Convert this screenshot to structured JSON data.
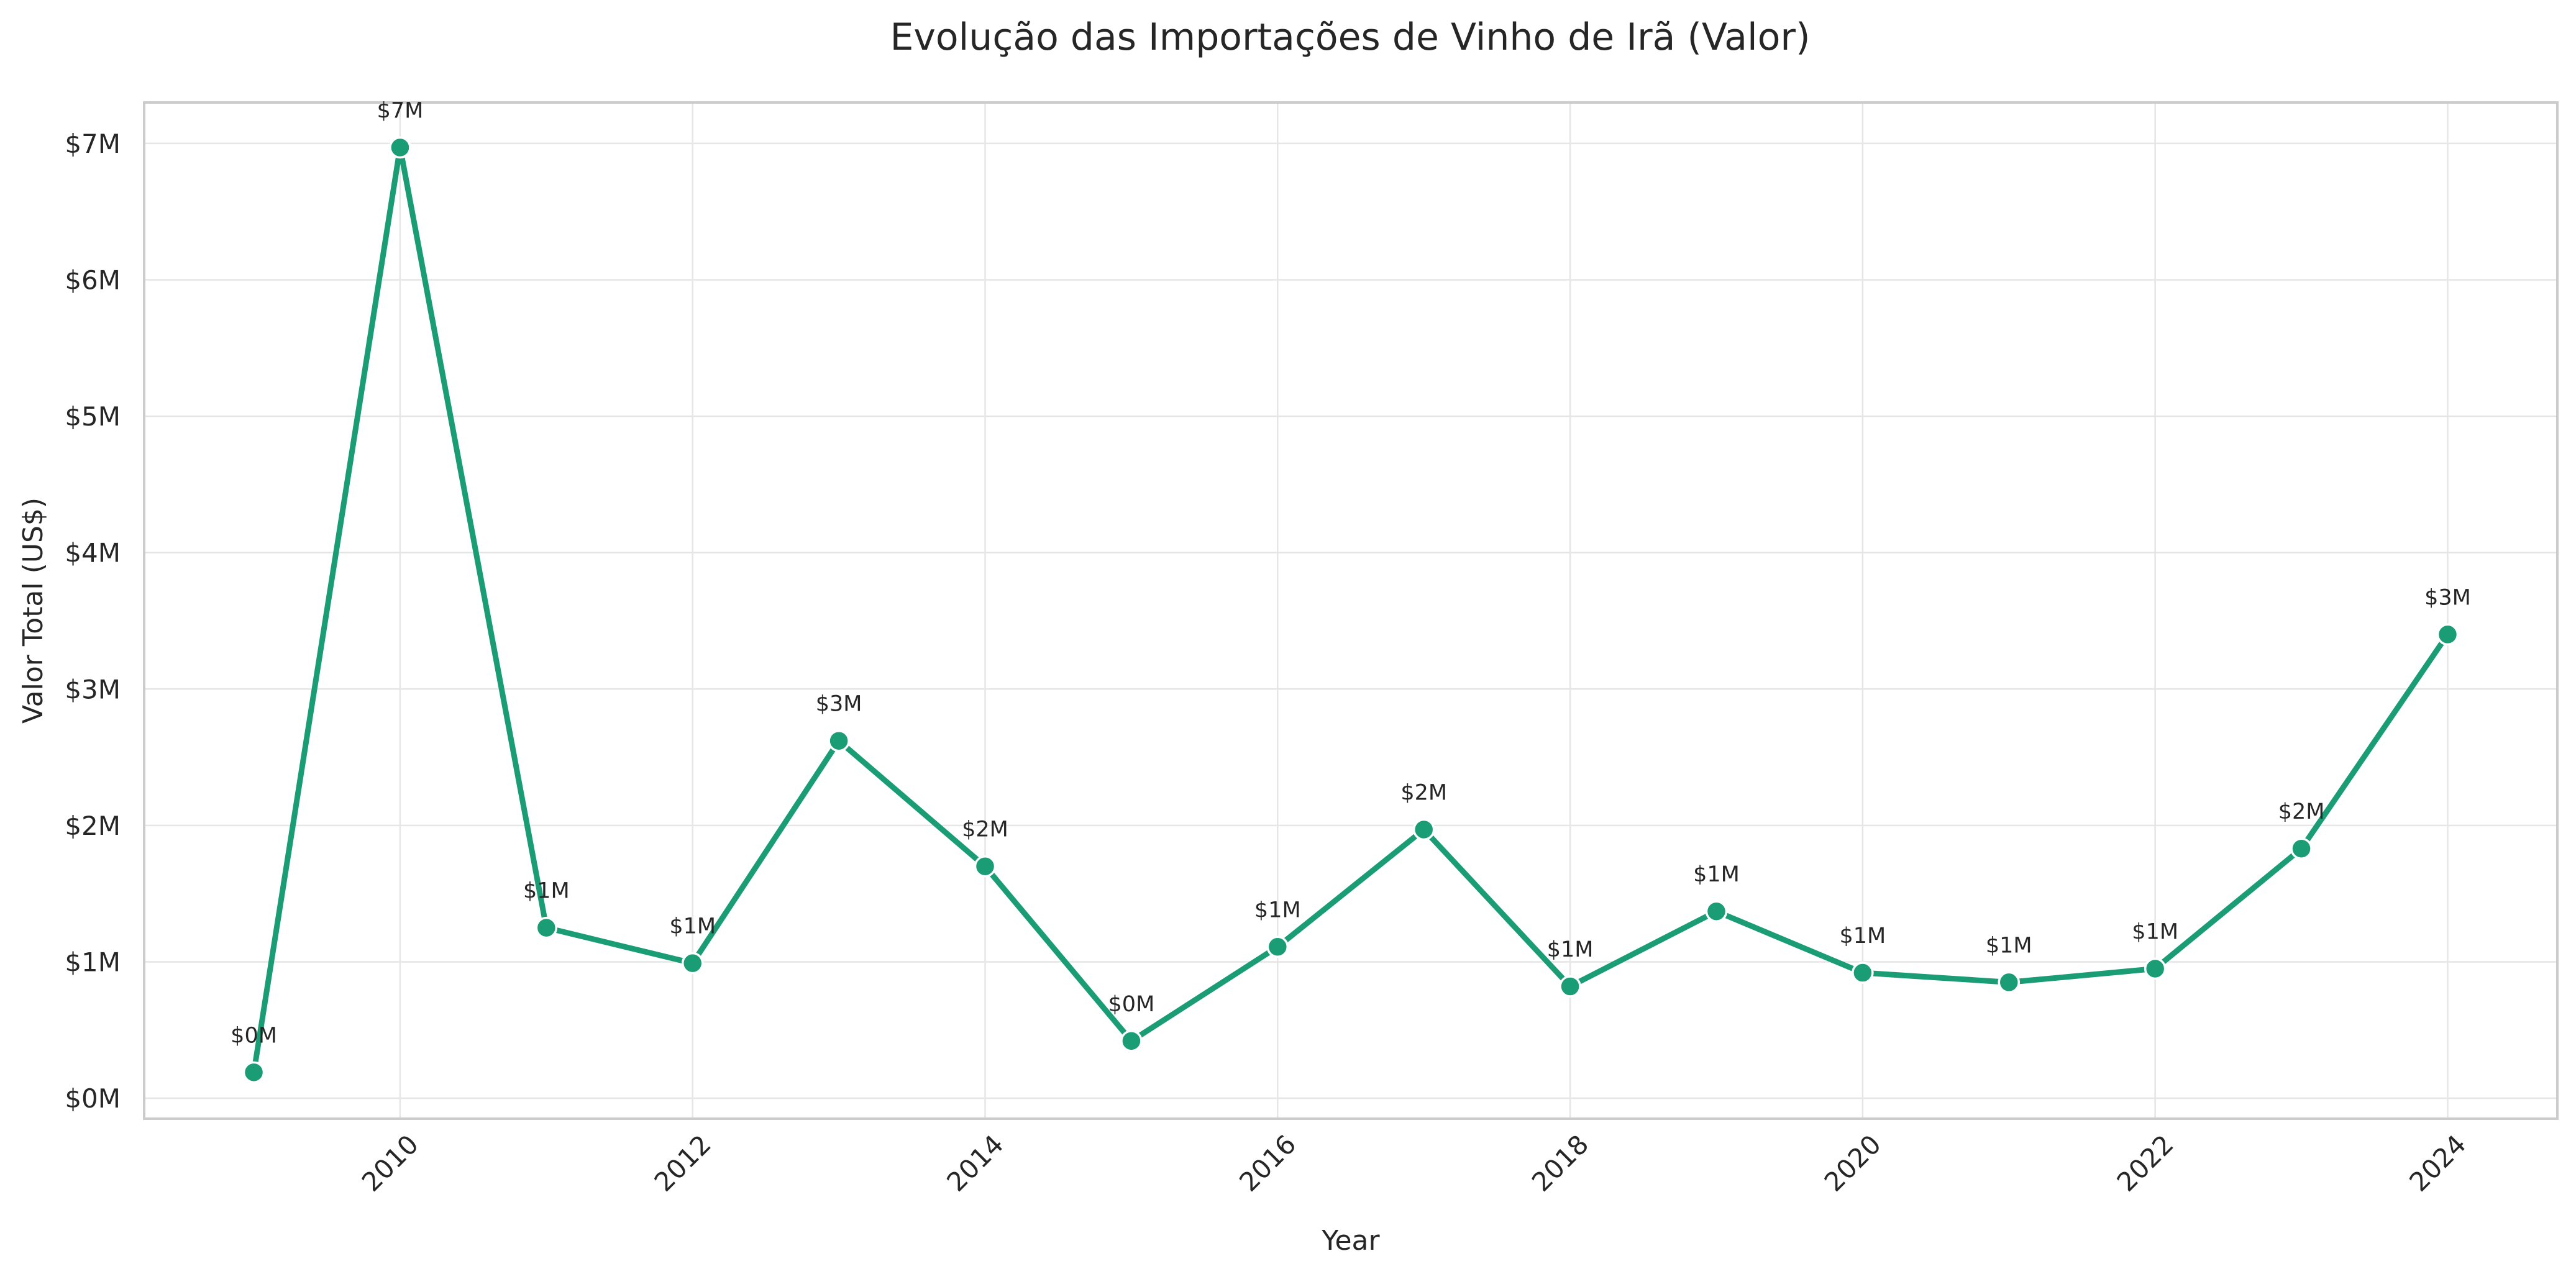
{
  "chart_data": {
    "type": "line",
    "title": "Evolução das Importações de Vinho de Irã (Valor)",
    "xlabel": "Year",
    "ylabel": "Valor Total (US$)",
    "x": [
      2009,
      2010,
      2011,
      2012,
      2013,
      2014,
      2015,
      2016,
      2017,
      2018,
      2019,
      2020,
      2021,
      2022,
      2023,
      2024
    ],
    "series": [
      {
        "values": [
          0.19,
          6.97,
          1.25,
          0.99,
          2.62,
          1.7,
          0.42,
          1.11,
          1.97,
          0.82,
          1.37,
          0.92,
          0.85,
          0.95,
          1.83,
          3.4
        ],
        "labels": [
          "$0M",
          "$7M",
          "$1M",
          "$1M",
          "$3M",
          "$2M",
          "$0M",
          "$1M",
          "$2M",
          "$1M",
          "$1M",
          "$1M",
          "$1M",
          "$1M",
          "$2M",
          "$3M"
        ]
      }
    ],
    "xticks": [
      2010,
      2012,
      2014,
      2016,
      2018,
      2020,
      2022,
      2024
    ],
    "yticks": [
      0,
      1,
      2,
      3,
      4,
      5,
      6,
      7
    ],
    "ytick_labels": [
      "$0M",
      "$1M",
      "$2M",
      "$3M",
      "$4M",
      "$5M",
      "$6M",
      "$7M"
    ],
    "xlim": [
      2008.25,
      2024.75
    ],
    "ylim": [
      -0.15,
      7.3
    ],
    "grid": true,
    "colors": {
      "line": "#1a9c75",
      "marker_edge": "#ffffff"
    }
  }
}
